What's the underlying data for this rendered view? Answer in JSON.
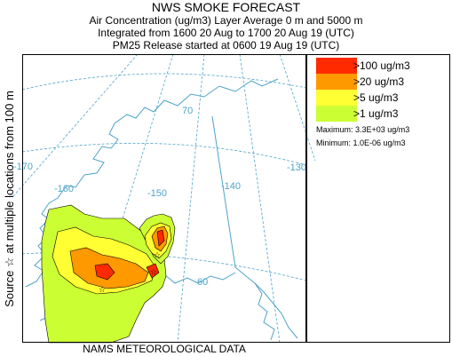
{
  "header": {
    "title": "NWS SMOKE FORECAST",
    "line1": "Air Concentration (ug/m3) Layer Average    0 m and  5000 m",
    "line2": "Integrated from 1600 20 Aug to 1700 20 Aug 19 (UTC)",
    "line3": "PM25 Release started at 0600 19 Aug 19 (UTC)"
  },
  "side_label": {
    "a": "Source ☆",
    "b": "at multiple locations",
    "c": "from   100 m"
  },
  "bottom_label": "NAMS METEOROLOGICAL DATA",
  "map": {
    "lon_labels": [
      "-170",
      "-160",
      "-150",
      "-140",
      "-130"
    ],
    "lat_labels": [
      "70",
      "60"
    ],
    "colors": {
      "coast": "#4fa3c9",
      "graticule": "#4fa3c9",
      "frame": "#000000"
    }
  },
  "legend": {
    "items": [
      {
        "label": ">100 ug/m3",
        "color": "#ff2a00"
      },
      {
        "label": ">20 ug/m3",
        "color": "#ff9900"
      },
      {
        "label": ">5 ug/m3",
        "color": "#ffff33"
      },
      {
        "label": ">1 ug/m3",
        "color": "#ccff33"
      }
    ],
    "maximum": "Maximum: 3.3E+03 ug/m3",
    "minimum": "Minimum: 1.0E-06 ug/m3"
  }
}
